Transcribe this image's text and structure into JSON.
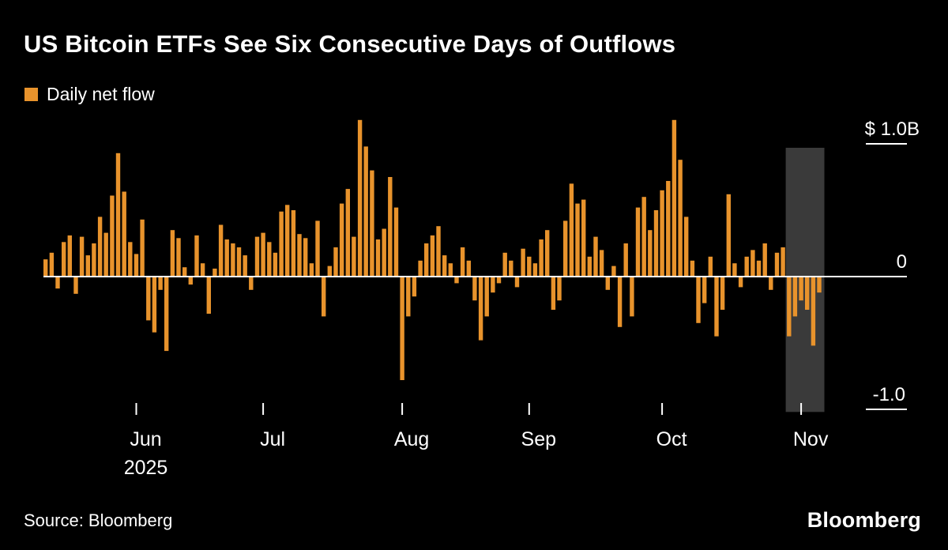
{
  "header": {
    "title": "US Bitcoin ETFs See Six Consecutive Days of Outflows",
    "legend_label": "Daily net flow"
  },
  "footer": {
    "source": "Source: Bloomberg",
    "brand": "Bloomberg"
  },
  "chart_data": {
    "type": "bar",
    "title": "US Bitcoin ETFs See Six Consecutive Days of Outflows",
    "series_name": "Daily net flow",
    "unit": "USD billions, daily net flow of US spot Bitcoin ETFs",
    "ylim": [
      -1.35,
      1.3
    ],
    "y_ticks": [
      {
        "label": "$ 1.0B",
        "value": 1.0
      },
      {
        "label": "0",
        "value": 0
      },
      {
        "label": "-1.0",
        "value": -1.0
      }
    ],
    "x_ticks": [
      {
        "label": "Jun",
        "index": 15
      },
      {
        "label": "Jul",
        "index": 36
      },
      {
        "label": "Aug",
        "index": 59
      },
      {
        "label": "Sep",
        "index": 80
      },
      {
        "label": "Oct",
        "index": 102
      },
      {
        "label": "Nov",
        "index": 125
      }
    ],
    "x_year": "2025",
    "highlight_range": [
      123,
      128
    ],
    "highlight_extent": [
      -1.02,
      0.97
    ],
    "colors": {
      "bar": "#E8932C",
      "highlight": "#3A3A3A",
      "background": "#000000",
      "text": "#FFFFFF"
    },
    "values": [
      0.13,
      0.18,
      -0.09,
      0.26,
      0.31,
      -0.13,
      0.3,
      0.16,
      0.25,
      0.45,
      0.33,
      0.61,
      0.93,
      0.64,
      0.26,
      0.17,
      0.43,
      -0.33,
      -0.42,
      -0.1,
      -0.56,
      0.35,
      0.29,
      0.07,
      -0.06,
      0.31,
      0.1,
      -0.28,
      0.06,
      0.39,
      0.28,
      0.25,
      0.22,
      0.16,
      -0.1,
      0.3,
      0.33,
      0.26,
      0.18,
      0.49,
      0.54,
      0.5,
      0.32,
      0.29,
      0.1,
      0.42,
      -0.3,
      0.08,
      0.22,
      0.55,
      0.66,
      0.3,
      1.18,
      0.98,
      0.8,
      0.28,
      0.36,
      0.75,
      0.52,
      -0.78,
      -0.3,
      -0.15,
      0.12,
      0.25,
      0.31,
      0.38,
      0.16,
      0.1,
      -0.05,
      0.22,
      0.12,
      -0.18,
      -0.48,
      -0.3,
      -0.12,
      -0.05,
      0.18,
      0.12,
      -0.08,
      0.21,
      0.15,
      0.1,
      0.28,
      0.35,
      -0.25,
      -0.18,
      0.42,
      0.7,
      0.55,
      0.58,
      0.15,
      0.3,
      0.2,
      -0.1,
      0.08,
      -0.38,
      0.25,
      -0.3,
      0.52,
      0.6,
      0.35,
      0.5,
      0.65,
      0.72,
      1.18,
      0.88,
      0.45,
      0.12,
      -0.35,
      -0.2,
      0.15,
      -0.45,
      -0.25,
      0.62,
      0.1,
      -0.08,
      0.15,
      0.2,
      0.12,
      0.25,
      -0.1,
      0.18,
      0.22,
      -0.45,
      -0.3,
      -0.18,
      -0.25,
      -0.52,
      -0.12
    ]
  }
}
